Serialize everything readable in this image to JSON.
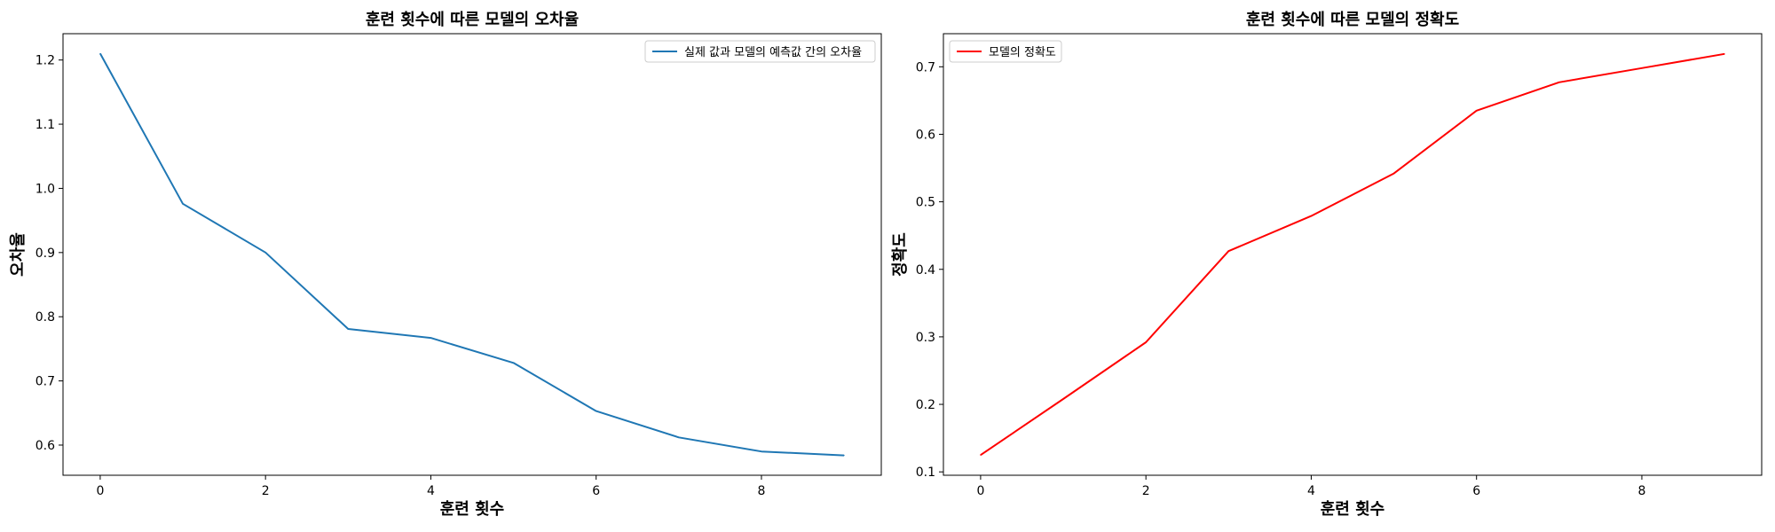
{
  "chart_data": [
    {
      "type": "line",
      "title": "훈련 횟수에 따른 모델의 오차율",
      "xlabel": "훈련 횟수",
      "ylabel": "오차율",
      "x": [
        0,
        1,
        2,
        3,
        4,
        5,
        6,
        7,
        8,
        9
      ],
      "series": [
        {
          "name": "실제 값과 모델의 예측값 간의 오차율",
          "color": "#1f77b4",
          "values": [
            1.21,
            0.976,
            0.9,
            0.781,
            0.767,
            0.728,
            0.653,
            0.612,
            0.59,
            0.584
          ]
        }
      ],
      "xlim": [
        -0.45,
        9.45
      ],
      "ylim": [
        0.553,
        1.241
      ],
      "xticks": [
        0,
        2,
        4,
        6,
        8
      ],
      "xtick_labels": [
        "0",
        "2",
        "4",
        "6",
        "8"
      ],
      "yticks": [
        0.6,
        0.7,
        0.8,
        0.9,
        1.0,
        1.1,
        1.2
      ],
      "ytick_labels": [
        "0.6",
        "0.7",
        "0.8",
        "0.9",
        "1.0",
        "1.1",
        "1.2"
      ],
      "grid": false,
      "legend_position": "top-right"
    },
    {
      "type": "line",
      "title": "훈련 횟수에 따른 모델의 정확도",
      "xlabel": "훈련 횟수",
      "ylabel": "정확도",
      "x": [
        0,
        1,
        2,
        3,
        4,
        5,
        6,
        7,
        8,
        9
      ],
      "series": [
        {
          "name": "모델의 정확도",
          "color": "#ff0000",
          "values": [
            0.125,
            0.208,
            0.292,
            0.427,
            0.479,
            0.542,
            0.635,
            0.677,
            0.698,
            0.719
          ]
        }
      ],
      "xlim": [
        -0.45,
        9.45
      ],
      "ylim": [
        0.095,
        0.749
      ],
      "xticks": [
        0,
        2,
        4,
        6,
        8
      ],
      "xtick_labels": [
        "0",
        "2",
        "4",
        "6",
        "8"
      ],
      "yticks": [
        0.1,
        0.2,
        0.3,
        0.4,
        0.5,
        0.6,
        0.7
      ],
      "ytick_labels": [
        "0.1",
        "0.2",
        "0.3",
        "0.4",
        "0.5",
        "0.6",
        "0.7"
      ],
      "grid": false,
      "legend_position": "top-left"
    }
  ]
}
